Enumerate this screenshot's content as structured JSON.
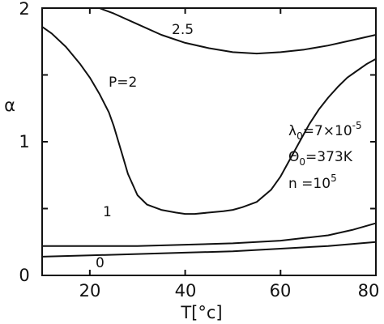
{
  "chart_data": {
    "type": "line",
    "xlabel": "T[°c]",
    "ylabel": "α",
    "xlim": [
      10,
      80
    ],
    "ylim": [
      0,
      2
    ],
    "xticks": [
      "20",
      "40",
      "60",
      "80"
    ],
    "yticks": [
      "0",
      "1",
      "2"
    ],
    "grid": false,
    "series": [
      {
        "name": "2.5",
        "x": [
          22,
          25,
          30,
          35,
          40,
          45,
          50,
          55,
          60,
          65,
          70,
          75,
          80
        ],
        "y": [
          2.0,
          1.96,
          1.88,
          1.8,
          1.74,
          1.7,
          1.67,
          1.66,
          1.67,
          1.69,
          1.72,
          1.76,
          1.8
        ]
      },
      {
        "name": "P=2",
        "x": [
          10,
          12,
          15,
          18,
          20,
          22,
          24,
          25,
          26,
          27,
          28,
          30,
          32,
          35,
          38,
          40,
          42,
          45,
          48,
          50,
          52,
          55,
          58,
          60,
          62,
          64,
          66,
          68,
          70,
          72,
          74,
          76,
          78,
          80
        ],
        "y": [
          1.86,
          1.81,
          1.71,
          1.58,
          1.48,
          1.36,
          1.22,
          1.12,
          1.0,
          0.88,
          0.76,
          0.6,
          0.53,
          0.49,
          0.47,
          0.46,
          0.46,
          0.47,
          0.48,
          0.49,
          0.51,
          0.55,
          0.64,
          0.74,
          0.87,
          1.0,
          1.13,
          1.24,
          1.33,
          1.41,
          1.48,
          1.53,
          1.58,
          1.62
        ]
      },
      {
        "name": "1",
        "x": [
          10,
          20,
          30,
          40,
          50,
          55,
          60,
          65,
          70,
          75,
          80
        ],
        "y": [
          0.22,
          0.22,
          0.22,
          0.23,
          0.24,
          0.25,
          0.26,
          0.28,
          0.3,
          0.34,
          0.39
        ]
      },
      {
        "name": "0",
        "x": [
          10,
          20,
          30,
          40,
          50,
          60,
          70,
          80
        ],
        "y": [
          0.14,
          0.15,
          0.16,
          0.17,
          0.18,
          0.2,
          0.22,
          0.25
        ]
      }
    ],
    "curve_labels": [
      "2.5",
      "P=2",
      "1",
      "0"
    ],
    "annotations": {
      "lambda_sym": "λ",
      "lambda_sub": "0",
      "lambda_val": "=7×10",
      "lambda_exp": "-5",
      "theta_sym": "Θ",
      "theta_sub": "0",
      "theta_val": "=373K",
      "n_text": "n =10",
      "n_exp": "5"
    }
  }
}
